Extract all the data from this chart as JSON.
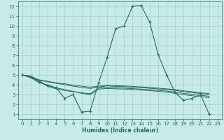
{
  "bg_color": "#c8eae8",
  "grid_color": "#a8d0cc",
  "line_color": "#236b5c",
  "xlabel": "Humidex (Indice chaleur)",
  "xlim": [
    -0.5,
    23.5
  ],
  "ylim": [
    0.5,
    12.5
  ],
  "xticks": [
    0,
    1,
    2,
    3,
    4,
    5,
    6,
    7,
    8,
    9,
    10,
    11,
    12,
    13,
    14,
    15,
    16,
    17,
    18,
    19,
    20,
    21,
    22,
    23
  ],
  "yticks": [
    1,
    2,
    3,
    4,
    5,
    6,
    7,
    8,
    9,
    10,
    11,
    12
  ],
  "main_x": [
    0,
    1,
    2,
    3,
    4,
    5,
    6,
    7,
    8,
    9,
    10,
    11,
    12,
    13,
    14,
    15,
    16,
    17,
    18,
    19,
    20,
    21,
    22
  ],
  "main_y": [
    5.0,
    4.8,
    4.3,
    3.9,
    3.7,
    2.6,
    3.0,
    1.2,
    1.3,
    4.2,
    6.8,
    9.7,
    10.0,
    12.0,
    12.1,
    10.4,
    7.1,
    5.0,
    3.2,
    2.4,
    2.6,
    3.0,
    1.0
  ],
  "flat_lines": [
    {
      "x": [
        0,
        1,
        2,
        3,
        4,
        5,
        6,
        7,
        8,
        9,
        10,
        11,
        12,
        13,
        14,
        15,
        16,
        17,
        18,
        19,
        20,
        21,
        22
      ],
      "y": [
        5.0,
        4.8,
        4.5,
        4.35,
        4.2,
        4.1,
        3.95,
        3.85,
        3.75,
        3.85,
        3.95,
        3.9,
        3.88,
        3.82,
        3.78,
        3.72,
        3.65,
        3.58,
        3.5,
        3.38,
        3.28,
        3.18,
        3.1
      ]
    },
    {
      "x": [
        0,
        1,
        2,
        3,
        4,
        5,
        6,
        7,
        8,
        9,
        10,
        11,
        12,
        13,
        14,
        15,
        16,
        17,
        18,
        19,
        20,
        21,
        22
      ],
      "y": [
        5.0,
        4.75,
        4.45,
        4.3,
        4.15,
        4.0,
        3.85,
        3.72,
        3.62,
        3.75,
        3.88,
        3.82,
        3.8,
        3.74,
        3.7,
        3.64,
        3.57,
        3.5,
        3.42,
        3.3,
        3.2,
        3.1,
        3.0
      ]
    },
    {
      "x": [
        0,
        1,
        2,
        3,
        4,
        5,
        6,
        7,
        8,
        9,
        10,
        11,
        12,
        13,
        14,
        15,
        16,
        17,
        18,
        19,
        20,
        21,
        22
      ],
      "y": [
        5.0,
        4.9,
        4.42,
        3.82,
        3.58,
        3.42,
        3.28,
        3.18,
        3.08,
        3.65,
        3.72,
        3.68,
        3.65,
        3.6,
        3.55,
        3.5,
        3.42,
        3.35,
        3.25,
        3.12,
        3.02,
        2.92,
        2.82
      ]
    },
    {
      "x": [
        0,
        1,
        2,
        3,
        4,
        5,
        6,
        7,
        8,
        9,
        10,
        11,
        12,
        13,
        14,
        15,
        16,
        17,
        18,
        19,
        20,
        21,
        22
      ],
      "y": [
        5.0,
        4.72,
        4.2,
        3.98,
        3.68,
        3.5,
        3.32,
        3.12,
        2.98,
        3.55,
        3.62,
        3.58,
        3.55,
        3.5,
        3.45,
        3.4,
        3.32,
        3.25,
        3.12,
        2.98,
        2.88,
        2.78,
        2.68
      ]
    }
  ]
}
